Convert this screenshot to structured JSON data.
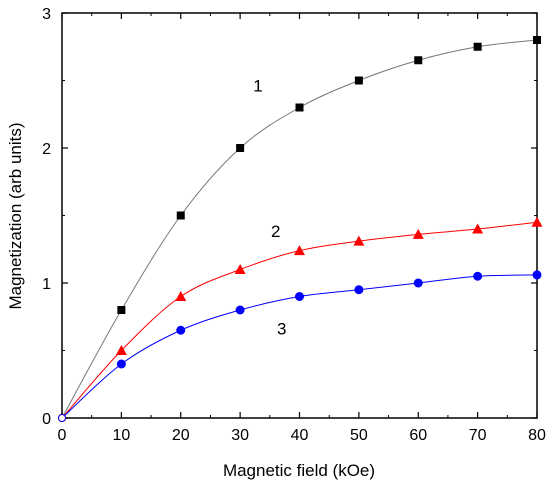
{
  "chart_data": {
    "type": "line",
    "title": "",
    "xlabel": "Magnetic field (kOe)",
    "ylabel": "Magnetization (arb units)",
    "xlim": [
      0,
      80
    ],
    "ylim": [
      0,
      3
    ],
    "x_ticks": [
      "0",
      "10",
      "20",
      "30",
      "40",
      "50",
      "60",
      "70",
      "80"
    ],
    "y_ticks": [
      "0",
      "1",
      "2",
      "3"
    ],
    "grid": false,
    "x": [
      0,
      10,
      20,
      30,
      40,
      50,
      60,
      70,
      80
    ],
    "series": [
      {
        "label": "1",
        "marker": "square",
        "color": "#000000",
        "line_color": "#777777",
        "values": [
          0,
          0.8,
          1.5,
          2.0,
          2.3,
          2.5,
          2.65,
          2.75,
          2.8
        ]
      },
      {
        "label": "2",
        "marker": "triangle",
        "color": "#ff0000",
        "line_color": "#ff0000",
        "values": [
          0,
          0.5,
          0.9,
          1.1,
          1.24,
          1.31,
          1.36,
          1.4,
          1.45
        ]
      },
      {
        "label": "3",
        "marker": "circle",
        "color": "#0000ff",
        "line_color": "#0000ff",
        "values": [
          0,
          0.4,
          0.65,
          0.8,
          0.9,
          0.95,
          1.0,
          1.05,
          1.06
        ]
      }
    ]
  }
}
